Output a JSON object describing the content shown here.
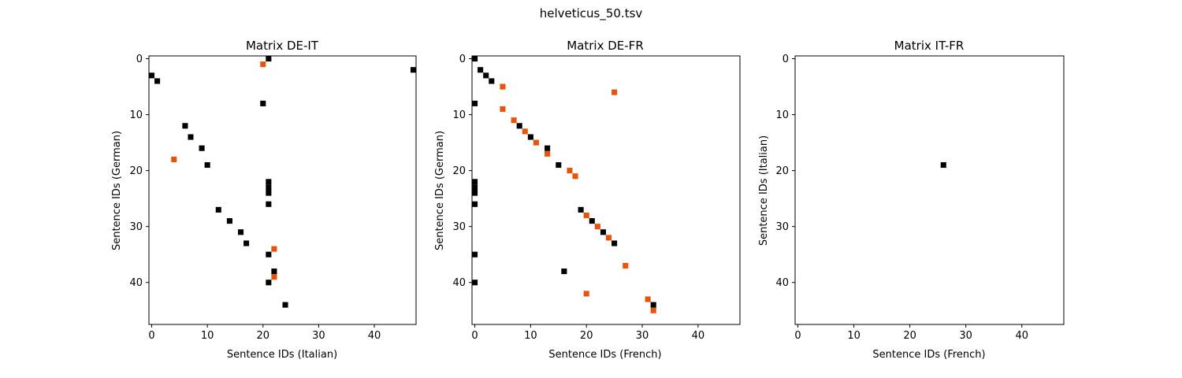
{
  "figure": {
    "suptitle": "helveticus_50.tsv"
  },
  "colors": {
    "black": "#000000",
    "orange": "#e8530a",
    "background": "#ffffff"
  },
  "chart_data": [
    {
      "type": "heatmap",
      "title": "Matrix DE-IT",
      "xlabel": "Sentence IDs (Italian)",
      "ylabel": "Sentence IDs (German)",
      "xlim": [
        -0.5,
        47.5
      ],
      "ylim": [
        47.5,
        -0.5
      ],
      "xticks": [
        0,
        10,
        20,
        30,
        40
      ],
      "yticks": [
        0,
        10,
        20,
        30,
        40
      ],
      "grid": false,
      "black_cells": [
        [
          21,
          0
        ],
        [
          47,
          2
        ],
        [
          0,
          3
        ],
        [
          1,
          4
        ],
        [
          20,
          8
        ],
        [
          6,
          12
        ],
        [
          7,
          14
        ],
        [
          9,
          16
        ],
        [
          10,
          19
        ],
        [
          21,
          22
        ],
        [
          21,
          23
        ],
        [
          21,
          24
        ],
        [
          21,
          26
        ],
        [
          12,
          27
        ],
        [
          14,
          29
        ],
        [
          16,
          31
        ],
        [
          17,
          33
        ],
        [
          21,
          35
        ],
        [
          22,
          38
        ],
        [
          21,
          40
        ],
        [
          24,
          44
        ]
      ],
      "orange_cells": [
        [
          20,
          1
        ],
        [
          4,
          18
        ],
        [
          22,
          34
        ],
        [
          22,
          39
        ]
      ]
    },
    {
      "type": "heatmap",
      "title": "Matrix DE-FR",
      "xlabel": "Sentence IDs (French)",
      "ylabel": "Sentence IDs (German)",
      "xlim": [
        -0.5,
        47.5
      ],
      "ylim": [
        47.5,
        -0.5
      ],
      "xticks": [
        0,
        10,
        20,
        30,
        40
      ],
      "yticks": [
        0,
        10,
        20,
        30,
        40
      ],
      "grid": false,
      "black_cells": [
        [
          0,
          0
        ],
        [
          1,
          2
        ],
        [
          2,
          3
        ],
        [
          3,
          4
        ],
        [
          0,
          8
        ],
        [
          8,
          12
        ],
        [
          10,
          14
        ],
        [
          13,
          16
        ],
        [
          15,
          19
        ],
        [
          0,
          22
        ],
        [
          0,
          23
        ],
        [
          0,
          24
        ],
        [
          0,
          26
        ],
        [
          19,
          27
        ],
        [
          21,
          29
        ],
        [
          23,
          31
        ],
        [
          25,
          33
        ],
        [
          0,
          35
        ],
        [
          16,
          38
        ],
        [
          0,
          40
        ],
        [
          32,
          44
        ]
      ],
      "orange_cells": [
        [
          5,
          5
        ],
        [
          25,
          6
        ],
        [
          5,
          9
        ],
        [
          7,
          11
        ],
        [
          9,
          13
        ],
        [
          11,
          15
        ],
        [
          13,
          17
        ],
        [
          17,
          20
        ],
        [
          18,
          21
        ],
        [
          20,
          28
        ],
        [
          22,
          30
        ],
        [
          24,
          32
        ],
        [
          27,
          37
        ],
        [
          20,
          42
        ],
        [
          31,
          43
        ],
        [
          32,
          45
        ]
      ]
    },
    {
      "type": "heatmap",
      "title": "Matrix IT-FR",
      "xlabel": "Sentence IDs (French)",
      "ylabel": "Sentence IDs (Italian)",
      "xlim": [
        -0.5,
        47.5
      ],
      "ylim": [
        47.5,
        -0.5
      ],
      "xticks": [
        0,
        10,
        20,
        30,
        40
      ],
      "yticks": [
        0,
        10,
        20,
        30,
        40
      ],
      "grid": false,
      "black_cells": [
        [
          26,
          19
        ]
      ],
      "orange_cells": []
    }
  ]
}
